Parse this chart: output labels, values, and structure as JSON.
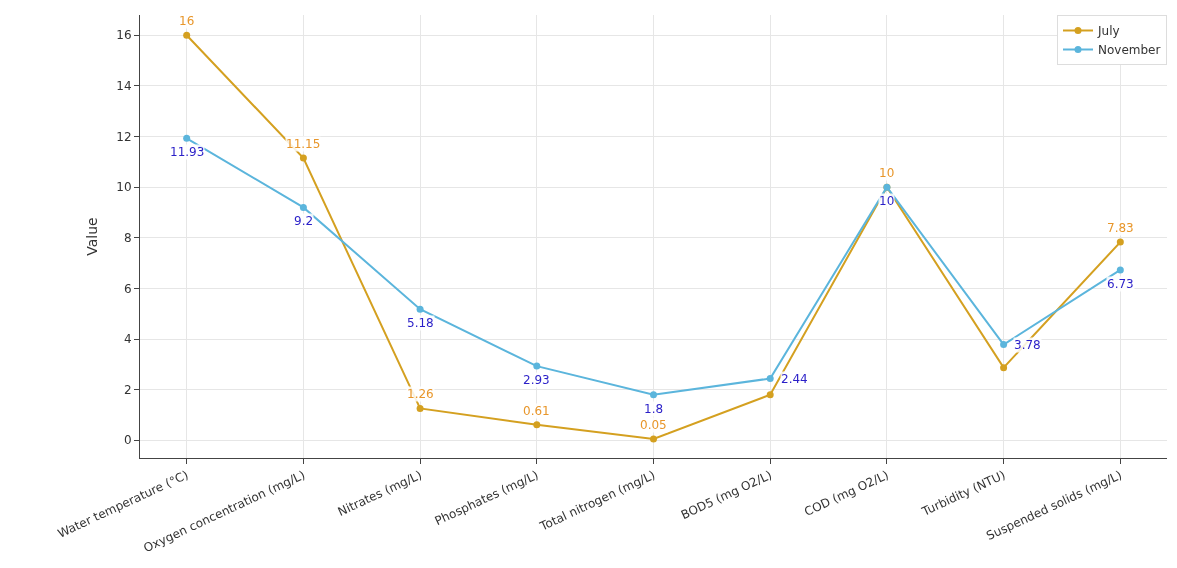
{
  "chart_data": {
    "type": "line",
    "ylabel": "Value",
    "categories": [
      "Water temperature (°C)",
      "Oxygen concentration (mg/L)",
      "Nitrates (mg/L)",
      "Phosphates (mg/L)",
      "Total nitrogen (mg/L)",
      "BOD5 (mg O2/L)",
      "COD (mg O2/L)",
      "Turbidity (NTU)",
      "Suspended solids (mg/L)"
    ],
    "series": [
      {
        "name": "July",
        "color": "#d4a020",
        "values": [
          16,
          11.15,
          1.26,
          0.61,
          0.05,
          1.8,
          10,
          2.87,
          7.83
        ],
        "value_labels": [
          "16",
          "11.15",
          "1.26",
          "0.61",
          "0.05",
          null,
          "10",
          null,
          "7.83"
        ]
      },
      {
        "name": "November",
        "color": "#5bb5dc",
        "values": [
          11.93,
          9.2,
          5.18,
          2.93,
          1.8,
          2.44,
          10,
          3.78,
          6.73
        ],
        "value_labels": [
          "11.93",
          "9.2",
          "5.18",
          "2.93",
          "1.8",
          "2.44",
          "10",
          "3.78",
          "6.73"
        ]
      }
    ],
    "ylim": [
      -0.7,
      16.8
    ],
    "yticks": [
      0,
      2,
      4,
      6,
      8,
      10,
      12,
      14,
      16
    ],
    "grid": true,
    "legend": "top right",
    "marker": "circle",
    "line_style": "solid"
  }
}
